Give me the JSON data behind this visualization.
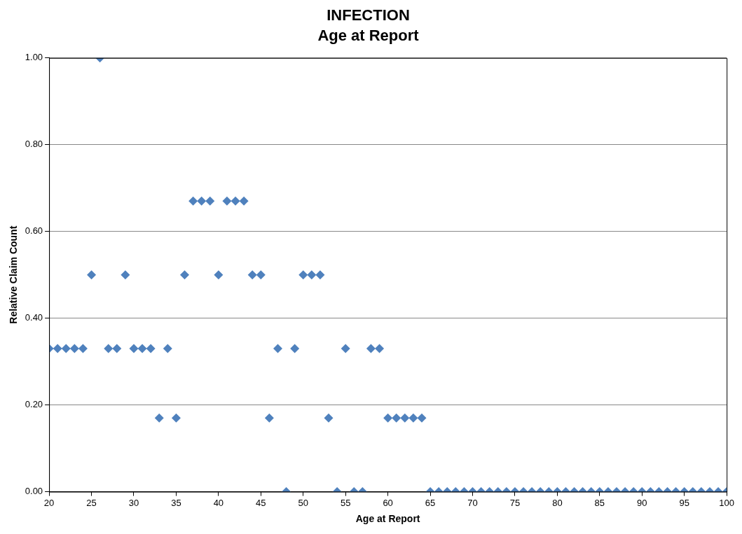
{
  "chart_data": {
    "type": "scatter",
    "title": "INFECTION",
    "subtitle": "Age at Report",
    "xlabel": "Age at Report",
    "ylabel": "Relative Claim Count",
    "x": [
      20,
      21,
      22,
      23,
      24,
      25,
      26,
      27,
      28,
      29,
      30,
      31,
      32,
      33,
      34,
      35,
      36,
      37,
      38,
      39,
      40,
      41,
      42,
      43,
      44,
      45,
      46,
      47,
      48,
      49,
      50,
      51,
      52,
      53,
      54,
      55,
      56,
      57,
      58,
      59,
      60,
      61,
      62,
      63,
      64,
      65,
      66,
      67,
      68,
      69,
      70,
      71,
      72,
      73,
      74,
      75,
      76,
      77,
      78,
      79,
      80,
      81,
      82,
      83,
      84,
      85,
      86,
      87,
      88,
      89,
      90,
      91,
      92,
      93,
      94,
      95,
      96,
      97,
      98,
      99,
      100
    ],
    "values": [
      0.33,
      0.33,
      0.33,
      0.33,
      0.33,
      0.5,
      1,
      0.33,
      0.33,
      0.5,
      0.33,
      0.33,
      0.33,
      0.17,
      0.33,
      0.17,
      0.5,
      0.67,
      0.67,
      0.67,
      0.5,
      0.67,
      0.67,
      0.67,
      0.5,
      0.5,
      0.17,
      0.33,
      0,
      0.33,
      0.5,
      0.5,
      0.5,
      0.17,
      0,
      0.33,
      0,
      0,
      0.33,
      0.33,
      0.17,
      0.17,
      0.17,
      0.17,
      0.17,
      0,
      0,
      0,
      0,
      0,
      0,
      0,
      0,
      0,
      0,
      0,
      0,
      0,
      0,
      0,
      0,
      0,
      0,
      0,
      0,
      0,
      0,
      0,
      0,
      0,
      0,
      0,
      0,
      0,
      0,
      0,
      0,
      0,
      0,
      0,
      0
    ],
    "color": "#4f81bd",
    "marker": "diamond",
    "grid": "y",
    "legend": false,
    "xlim": [
      20,
      100
    ],
    "xticks": [
      20,
      25,
      30,
      35,
      40,
      45,
      50,
      55,
      60,
      65,
      70,
      75,
      80,
      85,
      90,
      95,
      100
    ],
    "ylim": [
      0,
      1
    ],
    "yticks": [
      {
        "value": 0,
        "label": "0.00"
      },
      {
        "value": 0.2,
        "label": "0.20"
      },
      {
        "value": 0.4,
        "label": "0.40"
      },
      {
        "value": 0.6,
        "label": "0.60"
      },
      {
        "value": 0.8,
        "label": "0.80"
      },
      {
        "value": 1,
        "label": "1.00"
      }
    ]
  }
}
